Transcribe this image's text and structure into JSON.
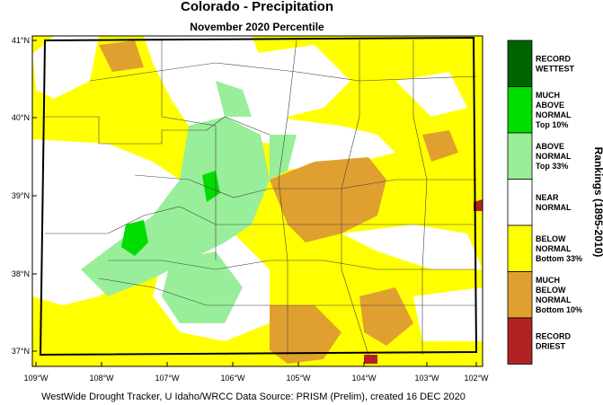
{
  "header": {
    "title": "Colorado - Precipitation",
    "subtitle": "November 2020 Percentile"
  },
  "map": {
    "lat_labels": [
      "41°N",
      "40°N",
      "39°N",
      "38°N",
      "37°N"
    ],
    "lon_labels": [
      "109°W",
      "108°W",
      "107°W",
      "106°W",
      "105°W",
      "104°W",
      "103°W",
      "102°W"
    ]
  },
  "legend": {
    "title": "Rankings (1895-2010)",
    "items": [
      {
        "lines": [
          "RECORD",
          "WETTEST"
        ],
        "color": "#006400"
      },
      {
        "lines": [
          "MUCH",
          "ABOVE",
          "NORMAL",
          "Top 10%"
        ],
        "color": "#00dd00"
      },
      {
        "lines": [
          "ABOVE",
          "NORMAL",
          "Top 33%"
        ],
        "color": "#99ee99"
      },
      {
        "lines": [
          "NEAR",
          "NORMAL"
        ],
        "color": "#ffffff"
      },
      {
        "lines": [
          "BELOW",
          "NORMAL",
          "Bottom 33%"
        ],
        "color": "#ffff00"
      },
      {
        "lines": [
          "MUCH",
          "BELOW",
          "NORMAL",
          "Bottom 10%"
        ],
        "color": "#e0a030"
      },
      {
        "lines": [
          "RECORD",
          "DRIEST"
        ],
        "color": "#b22222"
      }
    ]
  },
  "footer": "WestWide Drought Tracker, U Idaho/WRCC Data Source: PRISM (Prelim), created 16 DEC 2020"
}
